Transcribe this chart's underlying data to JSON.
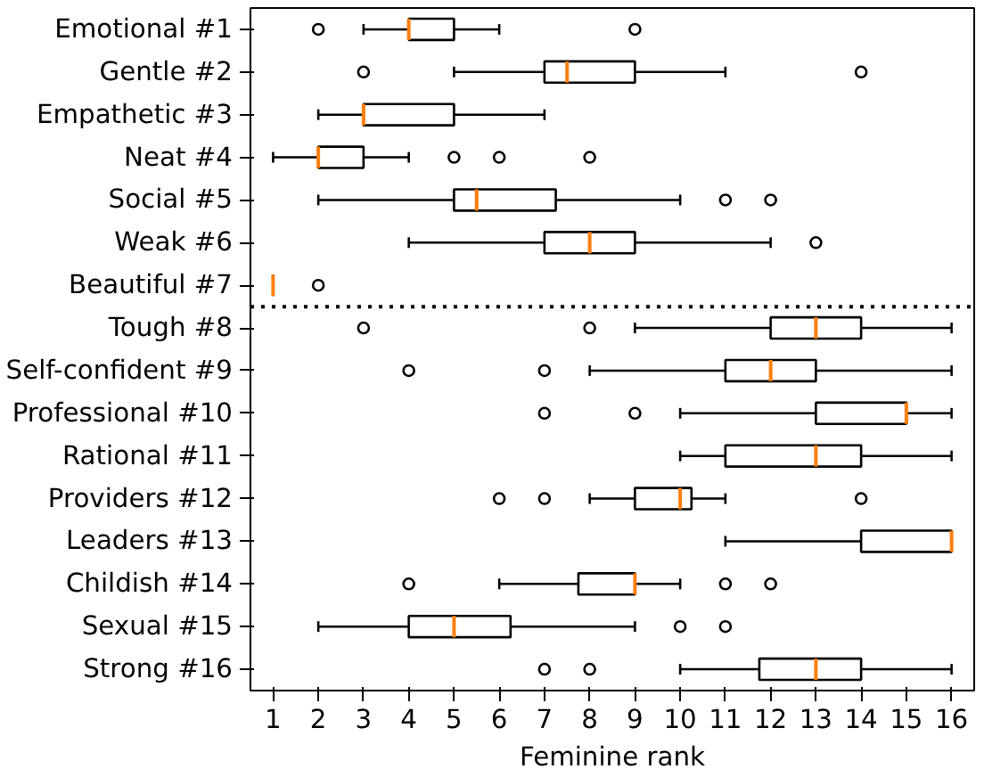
{
  "chart_data": {
    "type": "box",
    "orientation": "horizontal",
    "xlabel": "Feminine rank",
    "xlim": [
      0.5,
      16.5
    ],
    "xticks": [
      1,
      2,
      3,
      4,
      5,
      6,
      7,
      8,
      9,
      10,
      11,
      12,
      13,
      14,
      15,
      16
    ],
    "grid": false,
    "categories": [
      "Emotional #1",
      "Gentle #2",
      "Empathetic #3",
      "Neat #4",
      "Social #5",
      "Weak #6",
      "Beautiful #7",
      "Tough #8",
      "Self-confident #9",
      "Professional #10",
      "Rational #11",
      "Providers #12",
      "Leaders #13",
      "Childish #14",
      "Sexual #15",
      "Strong #16"
    ],
    "color": "#000000",
    "boxes": [
      {
        "low": 3,
        "q1": 4,
        "median": 4,
        "q3": 5,
        "high": 6,
        "outliers": [
          2,
          9
        ]
      },
      {
        "low": 5,
        "q1": 7,
        "median": 7.5,
        "q3": 9,
        "high": 11,
        "outliers": [
          3,
          14
        ]
      },
      {
        "low": 2,
        "q1": 3,
        "median": 3,
        "q3": 5,
        "high": 7
      },
      {
        "low": 1,
        "q1": 2,
        "median": 2,
        "q3": 3,
        "high": 4,
        "outliers": [
          5,
          6,
          8
        ]
      },
      {
        "low": 2,
        "q1": 5,
        "median": 5.5,
        "q3": 7.25,
        "high": 10,
        "outliers": [
          11,
          12
        ]
      },
      {
        "low": 4,
        "q1": 7,
        "median": 8,
        "q3": 9,
        "high": 12,
        "outliers": [
          13
        ]
      },
      {
        "low": 1,
        "q1": 1,
        "median": 1,
        "q3": 1,
        "high": 1,
        "outliers": [
          2
        ]
      },
      {
        "low": 9,
        "q1": 12,
        "median": 13,
        "q3": 14,
        "high": 16,
        "outliers": [
          3,
          8
        ]
      },
      {
        "low": 8,
        "q1": 11,
        "median": 12,
        "q3": 13,
        "high": 16,
        "outliers": [
          4,
          7
        ]
      },
      {
        "low": 10,
        "q1": 13,
        "median": 15,
        "q3": 15,
        "high": 16,
        "outliers": [
          7,
          9
        ]
      },
      {
        "low": 10,
        "q1": 11,
        "median": 13,
        "q3": 14,
        "high": 16
      },
      {
        "low": 8,
        "q1": 9,
        "median": 10,
        "q3": 10.25,
        "high": 11,
        "outliers": [
          6,
          7,
          14
        ]
      },
      {
        "low": 11,
        "q1": 14,
        "median": 16,
        "q3": 16,
        "high": 16
      },
      {
        "low": 6,
        "q1": 7.75,
        "median": 9,
        "q3": 9,
        "high": 10,
        "outliers": [
          4,
          11,
          12
        ]
      },
      {
        "low": 2,
        "q1": 4,
        "median": 5,
        "q3": 6.25,
        "high": 9,
        "outliers": [
          10,
          11
        ]
      },
      {
        "low": 10,
        "q1": 11.75,
        "median": 13,
        "q3": 14,
        "high": 16,
        "outliers": [
          7,
          8
        ]
      }
    ]
  }
}
